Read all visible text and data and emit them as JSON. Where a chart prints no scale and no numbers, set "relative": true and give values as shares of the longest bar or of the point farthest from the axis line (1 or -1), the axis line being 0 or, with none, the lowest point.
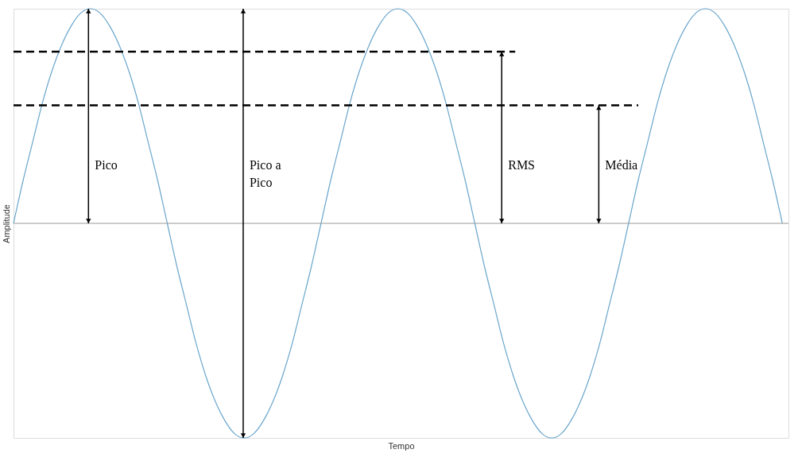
{
  "chart_data": {
    "type": "line",
    "relative": true,
    "xlabel": "Tempo",
    "ylabel": "Amplitude",
    "grid": false,
    "legend": false,
    "marker": "none",
    "line_style": "solid",
    "categories": [
      null,
      null,
      null,
      null,
      null,
      null,
      null,
      null,
      null,
      null,
      null,
      null,
      null,
      null,
      null,
      null,
      null,
      null,
      null,
      null,
      null,
      null,
      null,
      null,
      null,
      null,
      null,
      null,
      null,
      null,
      null,
      null,
      null,
      null,
      null,
      null,
      null,
      null,
      null,
      null,
      null,
      null,
      null,
      null,
      null,
      null,
      null,
      null,
      null,
      null,
      null,
      null,
      null,
      null,
      null,
      null,
      null,
      null,
      null,
      null,
      null,
      null,
      null,
      null,
      null,
      null,
      null,
      null,
      null,
      null,
      null,
      null,
      null,
      null,
      null,
      null,
      null,
      null,
      null,
      null,
      null
    ],
    "series": [
      {
        "color": "#6aa6cc",
        "values": [
          0,
          0.2,
          0.38,
          0.56,
          0.71,
          0.83,
          0.92,
          0.98,
          1,
          0.98,
          0.92,
          0.83,
          0.71,
          0.56,
          0.38,
          0.2,
          0,
          -0.2,
          -0.38,
          -0.56,
          -0.71,
          -0.83,
          -0.92,
          -0.98,
          -1,
          -0.98,
          -0.92,
          -0.83,
          -0.71,
          -0.56,
          -0.38,
          -0.2,
          0,
          0.2,
          0.38,
          0.56,
          0.71,
          0.83,
          0.92,
          0.98,
          1,
          0.98,
          0.92,
          0.83,
          0.71,
          0.56,
          0.38,
          0.2,
          0,
          -0.2,
          -0.38,
          -0.56,
          -0.71,
          -0.83,
          -0.92,
          -0.98,
          -1,
          -0.98,
          -0.92,
          -0.83,
          -0.71,
          -0.56,
          -0.38,
          -0.2,
          0,
          0.2,
          0.38,
          0.56,
          0.71,
          0.83,
          0.92,
          0.98,
          1,
          0.98,
          0.92,
          0.83,
          0.71,
          0.56,
          0.38,
          0.2,
          0
        ]
      }
    ],
    "ref_lines": [
      {
        "axis": "y",
        "value": 0.8,
        "color": "#000000",
        "line_style": "dashed"
      },
      {
        "axis": "y",
        "value": 0.55,
        "color": "#000000",
        "line_style": "dashed"
      }
    ],
    "annotations": [
      "Pico",
      "Pico a\nPico",
      "RMS",
      "Média"
    ]
  }
}
